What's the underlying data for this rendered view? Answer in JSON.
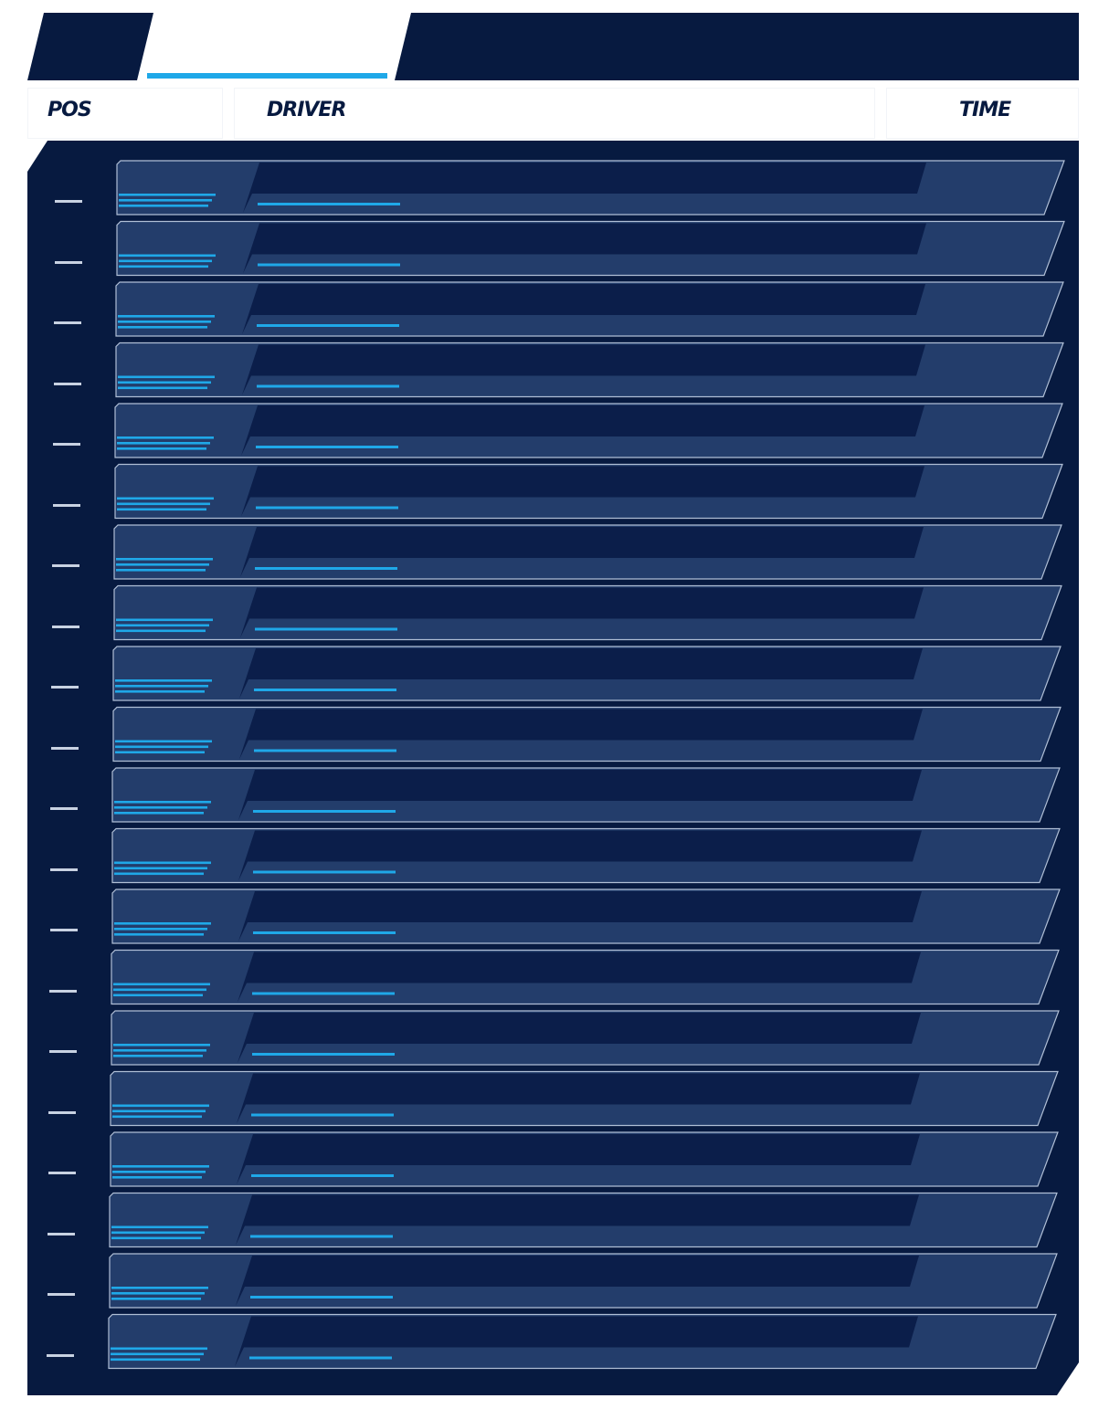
{
  "header": {
    "pos_label": "POS",
    "driver_label": "DRIVER",
    "time_label": "TIME"
  },
  "tabs": [
    {
      "state": "inactive"
    },
    {
      "state": "active",
      "underline_color": "#1fa8e8"
    },
    {
      "state": "inactive"
    }
  ],
  "colors": {
    "panel": "#071a40",
    "row": "#233d6b",
    "row_inner": "#0b1e4a",
    "accent": "#1fa8e8",
    "row_border": "#b0bfd6"
  },
  "rows": [
    {
      "pos": ""
    },
    {
      "pos": ""
    },
    {
      "pos": ""
    },
    {
      "pos": ""
    },
    {
      "pos": ""
    },
    {
      "pos": ""
    },
    {
      "pos": ""
    },
    {
      "pos": ""
    },
    {
      "pos": ""
    },
    {
      "pos": ""
    },
    {
      "pos": ""
    },
    {
      "pos": ""
    },
    {
      "pos": ""
    },
    {
      "pos": ""
    },
    {
      "pos": ""
    },
    {
      "pos": ""
    },
    {
      "pos": ""
    },
    {
      "pos": ""
    },
    {
      "pos": ""
    },
    {
      "pos": ""
    }
  ]
}
